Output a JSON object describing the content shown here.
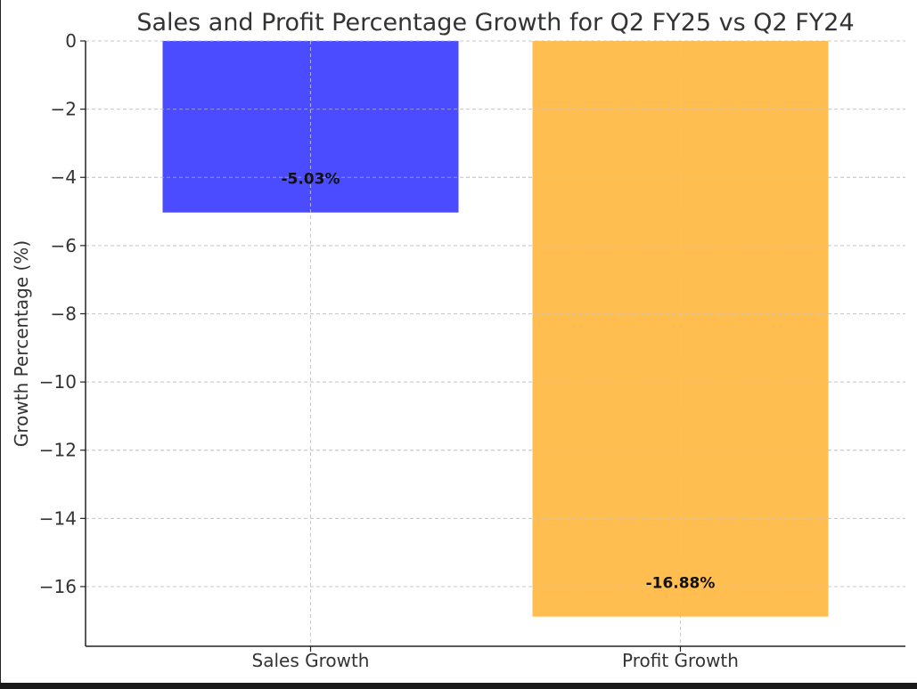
{
  "chart_data": {
    "type": "bar",
    "title": "Sales and Profit Percentage Growth for Q2 FY25 vs Q2 FY24",
    "xlabel": "",
    "ylabel": "Growth Percentage (%)",
    "categories": [
      "Sales Growth",
      "Profit Growth"
    ],
    "values": [
      -5.03,
      -16.88
    ],
    "value_labels": [
      "-5.03%",
      "-16.88%"
    ],
    "colors": [
      "#4b4bff",
      "#ffbe4f"
    ],
    "ylim": [
      -17.75,
      0
    ],
    "yticks": [
      0,
      -2,
      -4,
      -6,
      -8,
      -10,
      -12,
      -14,
      -16
    ],
    "ytick_labels": [
      "0",
      "−2",
      "−4",
      "−6",
      "−8",
      "−10",
      "−12",
      "−14",
      "−16"
    ],
    "grid": true
  }
}
